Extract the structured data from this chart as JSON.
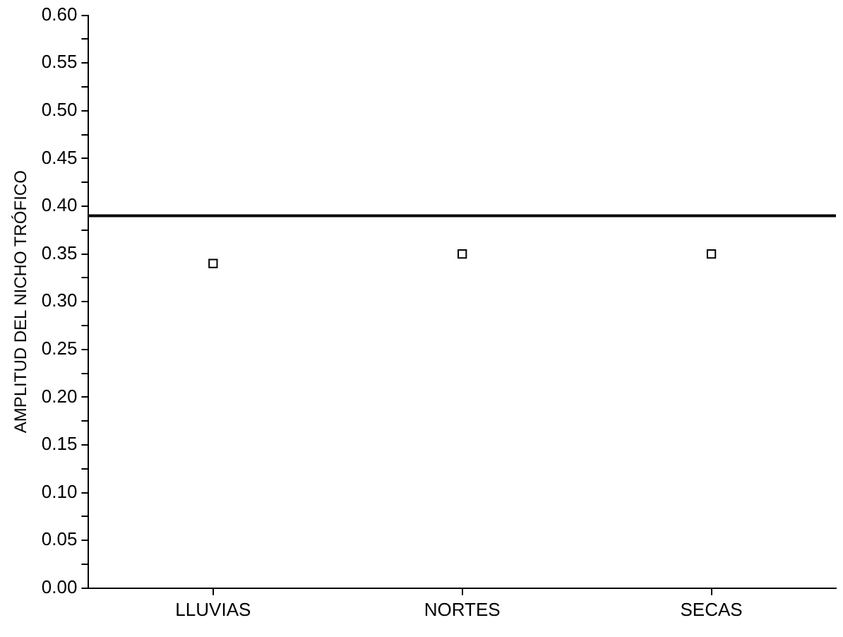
{
  "chart_data": {
    "type": "scatter",
    "ylabel": "AMPLITUD DEL NICHO TRÓFICO",
    "categories": [
      "LLUVIAS",
      "NORTES",
      "SECAS"
    ],
    "series": [
      {
        "color": "#000000",
        "values": [
          0.34,
          0.35,
          0.35
        ]
      }
    ],
    "marker": "square",
    "grid": false,
    "legend": false,
    "ylim": [
      0,
      0.6
    ],
    "yticks": [
      "0.00",
      {
        "value": 0.025,
        "label": null
      },
      {
        "value": 0.05,
        "label": "0.05"
      },
      {
        "value": 0.075,
        "label": null
      },
      {
        "value": 0.1,
        "label": "0.10"
      },
      {
        "value": 0.125,
        "label": null
      },
      {
        "value": 0.15,
        "label": "0.15"
      },
      {
        "value": 0.175,
        "label": null
      },
      {
        "value": 0.2,
        "label": "0.20"
      },
      {
        "value": 0.225,
        "label": null
      },
      {
        "value": 0.25,
        "label": "0.25"
      },
      {
        "value": 0.275,
        "label": null
      },
      {
        "value": 0.3,
        "label": "0.30"
      },
      {
        "value": 0.325,
        "label": null
      },
      {
        "value": 0.35,
        "label": "0.35"
      },
      {
        "value": 0.375,
        "label": null
      },
      {
        "value": 0.4,
        "label": "0.40"
      },
      {
        "value": 0.425,
        "label": null
      },
      {
        "value": 0.45,
        "label": "0.45"
      },
      {
        "value": 0.475,
        "label": null
      },
      {
        "value": 0.5,
        "label": "0.50"
      },
      {
        "value": 0.525,
        "label": null
      },
      {
        "value": 0.55,
        "label": "0.55"
      },
      {
        "value": 0.575,
        "label": null
      },
      {
        "value": 0.6,
        "label": "0.60"
      }
    ],
    "ref_lines": [
      {
        "axis": "y",
        "value": 0.39,
        "color": "#000000",
        "line_style": "solid"
      }
    ]
  }
}
